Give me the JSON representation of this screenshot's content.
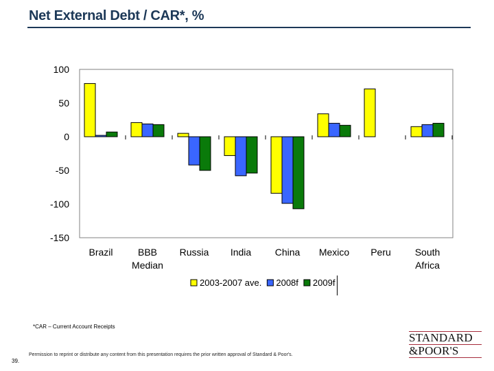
{
  "header": {
    "title": "Net External Debt / CAR*, %"
  },
  "chart_data": {
    "type": "bar",
    "title": "Net External Debt / CAR*, %",
    "xlabel": "",
    "ylabel": "",
    "ylim": [
      -150,
      100
    ],
    "yticks": [
      100,
      50,
      0,
      -50,
      -100,
      -150
    ],
    "ytick_labels": [
      "100",
      "50",
      "0",
      "-50",
      "-100",
      "-150"
    ],
    "grid": false,
    "legend_position": "bottom",
    "categories": [
      "Brazil",
      "BBB Median",
      "Russia",
      "India",
      "China",
      "Mexico",
      "Peru",
      "South Africa"
    ],
    "category_lines": [
      [
        "Brazil"
      ],
      [
        "BBB",
        "Median"
      ],
      [
        "Russia"
      ],
      [
        "India"
      ],
      [
        "China"
      ],
      [
        "Mexico"
      ],
      [
        "Peru"
      ],
      [
        "South",
        "Africa"
      ]
    ],
    "series": [
      {
        "name": "2003-2007 ave.",
        "color": "#ffff00",
        "values": [
          79,
          21,
          5,
          -28,
          -84,
          34,
          71,
          15
        ]
      },
      {
        "name": "2008f",
        "color": "#3a66ff",
        "values": [
          2,
          19,
          -42,
          -58,
          -99,
          20,
          null,
          18
        ]
      },
      {
        "name": "2009f",
        "color": "#0a7a0a",
        "values": [
          7,
          18,
          -50,
          -54,
          -107,
          17,
          null,
          20
        ]
      }
    ]
  },
  "footer": {
    "footnote": "*CAR – Current Account Receipts",
    "permission": "Permission to reprint or distribute any content from this presentation requires the prior written approval of Standard & Poor's.",
    "page_number": "39.",
    "logo_line1": "STANDARD",
    "logo_line2": "&POOR'S"
  }
}
